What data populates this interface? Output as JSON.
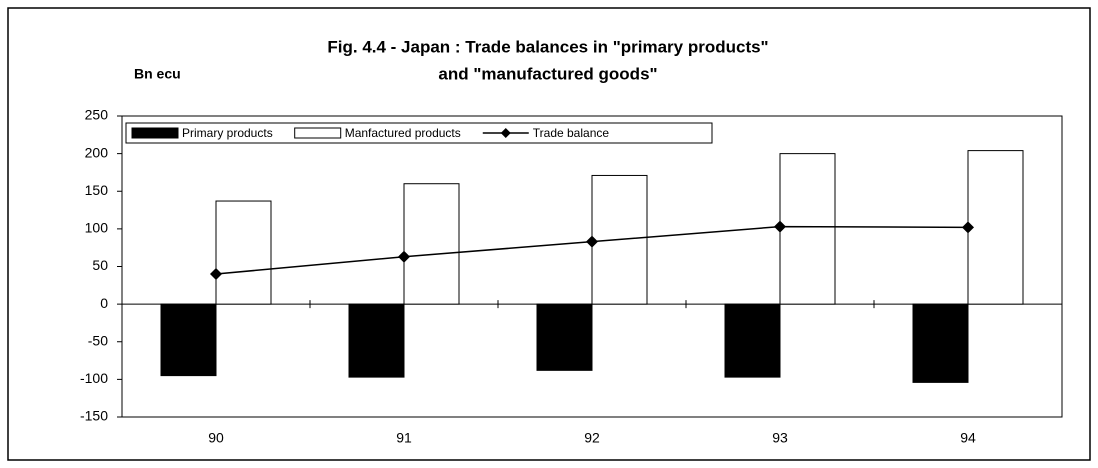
{
  "chart_data": {
    "type": "bar",
    "title": [
      "Fig. 4.4 - Japan : Trade balances in \"primary products\"",
      "and \"manufactured goods\""
    ],
    "y_label": "Bn ecu",
    "categories": [
      "90",
      "91",
      "92",
      "93",
      "94"
    ],
    "series": [
      {
        "name": "Primary products",
        "color": "#000000",
        "type": "bar",
        "values": [
          -95,
          -97,
          -88,
          -97,
          -104
        ]
      },
      {
        "name": "Manfactured products",
        "color": "#ffffff",
        "type": "bar",
        "values": [
          137,
          160,
          171,
          200,
          204
        ]
      },
      {
        "name": "Trade balance",
        "color": "#000000",
        "type": "line",
        "values": [
          40,
          63,
          83,
          103,
          102
        ]
      }
    ],
    "ylim": [
      -150,
      250
    ],
    "yticks": [
      -150,
      -100,
      -50,
      0,
      50,
      100,
      150,
      200,
      250
    ],
    "legend": "top-left"
  }
}
